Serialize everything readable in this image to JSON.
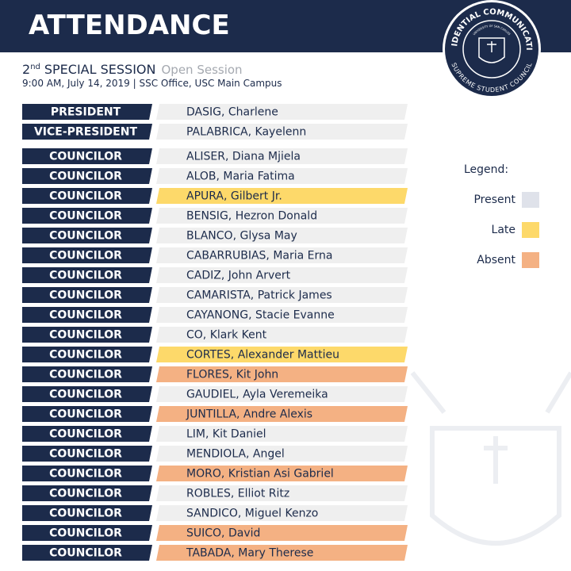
{
  "header": {
    "title": "ATTENDANCE"
  },
  "logo": {
    "top": "PRESIDENTIAL COMMUNICATIONS",
    "bottom": "SUPREME STUDENT COUNCIL",
    "inner": "UNIVERSITY OF SAN CARLOS"
  },
  "session": {
    "number": "2",
    "suffix": "nd",
    "name": "SPECIAL SESSION",
    "type": "Open Session",
    "details": "9:00 AM, July 14, 2019 | SSC Office, USC Main Campus"
  },
  "attendance": {
    "rows": [
      {
        "position": "PRESIDENT",
        "name": "DASIG, Charlene",
        "color": "#efefef"
      },
      {
        "position": "VICE-PRESIDENT",
        "name": "PALABRICA, Kayelenn",
        "color": "#efefef"
      },
      {
        "position": "COUNCILOR",
        "name": "ALISER, Diana Mjiela",
        "color": "#efefef"
      },
      {
        "position": "COUNCILOR",
        "name": "ALOB, Maria Fatima",
        "color": "#efefef"
      },
      {
        "position": "COUNCILOR",
        "name": "APURA, Gilbert Jr.",
        "color": "#fdd96a"
      },
      {
        "position": "COUNCILOR",
        "name": "BENSIG, Hezron Donald",
        "color": "#efefef"
      },
      {
        "position": "COUNCILOR",
        "name": "BLANCO, Glysa May",
        "color": "#efefef"
      },
      {
        "position": "COUNCILOR",
        "name": "CABARRUBIAS, Maria Erna",
        "color": "#efefef"
      },
      {
        "position": "COUNCILOR",
        "name": "CADIZ, John Arvert",
        "color": "#efefef"
      },
      {
        "position": "COUNCILOR",
        "name": "CAMARISTA, Patrick James",
        "color": "#efefef"
      },
      {
        "position": "COUNCILOR",
        "name": "CAYANONG, Stacie Evanne",
        "color": "#efefef"
      },
      {
        "position": "COUNCILOR",
        "name": "CO, Klark Kent",
        "color": "#efefef"
      },
      {
        "position": "COUNCILOR",
        "name": "CORTES, Alexander Mattieu",
        "color": "#fdd96a"
      },
      {
        "position": "COUNCILOR",
        "name": "FLORES, Kit John",
        "color": "#f4b183"
      },
      {
        "position": "COUNCILOR",
        "name": "GAUDIEL, Ayla Veremeika",
        "color": "#efefef"
      },
      {
        "position": "COUNCILOR",
        "name": "JUNTILLA, Andre Alexis",
        "color": "#f4b183"
      },
      {
        "position": "COUNCILOR",
        "name": "LIM, Kit Daniel",
        "color": "#efefef"
      },
      {
        "position": "COUNCILOR",
        "name": "MENDIOLA, Angel",
        "color": "#efefef"
      },
      {
        "position": "COUNCILOR",
        "name": "MORO, Kristian Asi Gabriel",
        "color": "#f4b183"
      },
      {
        "position": "COUNCILOR",
        "name": "ROBLES, Elliot Ritz",
        "color": "#efefef"
      },
      {
        "position": "COUNCILOR",
        "name": "SANDICO, Miguel Kenzo",
        "color": "#efefef"
      },
      {
        "position": "COUNCILOR",
        "name": "SUICO, David",
        "color": "#f4b183"
      },
      {
        "position": "COUNCILOR",
        "name": "TABADA, Mary Therese",
        "color": "#f4b183"
      }
    ]
  },
  "legend": {
    "title": "Legend:",
    "items": [
      {
        "label": "Present",
        "color": "#dfe2ea"
      },
      {
        "label": "Late",
        "color": "#fdd96a"
      },
      {
        "label": "Absent",
        "color": "#f4b183"
      }
    ]
  }
}
